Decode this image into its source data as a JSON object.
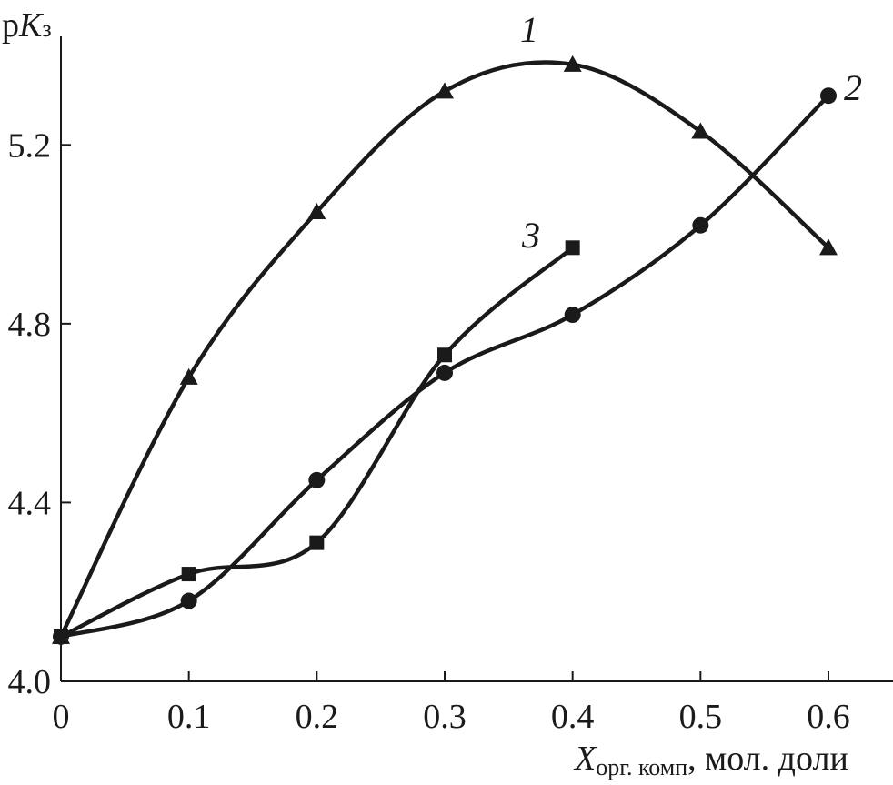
{
  "chart_data": {
    "type": "line",
    "ylabel": {
      "main": "p",
      "italic": "K",
      "sub": "з"
    },
    "xlabel": {
      "italic": "X",
      "sub": "орг. комп",
      "rest": ", мол. доли"
    },
    "xlim": [
      0,
      0.6
    ],
    "ylim": [
      4.0,
      5.4
    ],
    "x_ticks": [
      0,
      0.1,
      0.2,
      0.3,
      0.4,
      0.5,
      0.6
    ],
    "x_tick_labels": [
      "0",
      "0.1",
      "0.2",
      "0.3",
      "0.4",
      "0.5",
      "0.6"
    ],
    "y_ticks": [
      4.0,
      4.4,
      4.8,
      5.2
    ],
    "y_tick_labels": [
      "4.0",
      "4.4",
      "4.8",
      "5.2"
    ],
    "grid": false,
    "series": [
      {
        "name": "1",
        "marker": "triangle",
        "x": [
          0,
          0.1,
          0.2,
          0.3,
          0.4,
          0.5,
          0.6
        ],
        "y": [
          4.1,
          4.68,
          5.05,
          5.32,
          5.38,
          5.23,
          4.97
        ]
      },
      {
        "name": "2",
        "marker": "circle",
        "x": [
          0,
          0.1,
          0.2,
          0.3,
          0.4,
          0.5,
          0.6
        ],
        "y": [
          4.1,
          4.18,
          4.45,
          4.69,
          4.82,
          5.02,
          5.31
        ]
      },
      {
        "name": "3",
        "marker": "square",
        "x": [
          0,
          0.1,
          0.2,
          0.3,
          0.4
        ],
        "y": [
          4.1,
          4.24,
          4.31,
          4.73,
          4.97
        ]
      }
    ]
  }
}
